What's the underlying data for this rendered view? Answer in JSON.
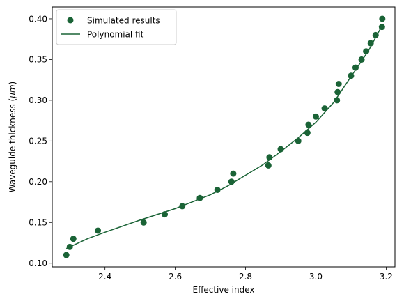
{
  "chart_data": {
    "type": "scatter",
    "xlabel": "Effective index",
    "ylabel_main": "Waveguide thickness (",
    "ylabel_unit": "μm",
    "ylabel_close": ")",
    "xlim": [
      2.25,
      3.225
    ],
    "ylim": [
      0.0955,
      0.4145
    ],
    "xticks": [
      2.4,
      2.6,
      2.8,
      3.0,
      3.2
    ],
    "xtick_labels": [
      "2.4",
      "2.6",
      "2.8",
      "3.0",
      "3.2"
    ],
    "yticks": [
      0.1,
      0.15,
      0.2,
      0.25,
      0.3,
      0.35,
      0.4
    ],
    "ytick_labels": [
      "0.10",
      "0.15",
      "0.20",
      "0.25",
      "0.30",
      "0.35",
      "0.40"
    ],
    "grid": false,
    "legend_position": "top-left",
    "color": "#1a6336",
    "series": [
      {
        "name": "Simulated results",
        "kind": "scatter",
        "points": [
          [
            2.29,
            0.11
          ],
          [
            2.3,
            0.12
          ],
          [
            2.31,
            0.13
          ],
          [
            2.38,
            0.14
          ],
          [
            2.51,
            0.15
          ],
          [
            2.57,
            0.16
          ],
          [
            2.62,
            0.17
          ],
          [
            2.67,
            0.18
          ],
          [
            2.72,
            0.19
          ],
          [
            2.76,
            0.2
          ],
          [
            2.765,
            0.21
          ],
          [
            2.865,
            0.22
          ],
          [
            2.868,
            0.23
          ],
          [
            2.9,
            0.24
          ],
          [
            2.95,
            0.25
          ],
          [
            2.976,
            0.26
          ],
          [
            2.979,
            0.27
          ],
          [
            3.0,
            0.28
          ],
          [
            3.025,
            0.29
          ],
          [
            3.06,
            0.3
          ],
          [
            3.062,
            0.31
          ],
          [
            3.065,
            0.32
          ],
          [
            3.1,
            0.33
          ],
          [
            3.113,
            0.34
          ],
          [
            3.13,
            0.35
          ],
          [
            3.143,
            0.36
          ],
          [
            3.156,
            0.37
          ],
          [
            3.17,
            0.38
          ],
          [
            3.188,
            0.39
          ],
          [
            3.189,
            0.4
          ]
        ]
      },
      {
        "name": "Polynomial fit",
        "kind": "line",
        "points": [
          [
            2.29,
            0.118
          ],
          [
            2.35,
            0.13
          ],
          [
            2.4,
            0.138
          ],
          [
            2.5,
            0.153
          ],
          [
            2.6,
            0.167
          ],
          [
            2.7,
            0.184
          ],
          [
            2.75,
            0.195
          ],
          [
            2.8,
            0.208
          ],
          [
            2.85,
            0.221
          ],
          [
            2.9,
            0.237
          ],
          [
            2.95,
            0.254
          ],
          [
            3.0,
            0.273
          ],
          [
            3.05,
            0.297
          ],
          [
            3.1,
            0.329
          ],
          [
            3.15,
            0.361
          ],
          [
            3.19,
            0.393
          ]
        ]
      }
    ]
  }
}
